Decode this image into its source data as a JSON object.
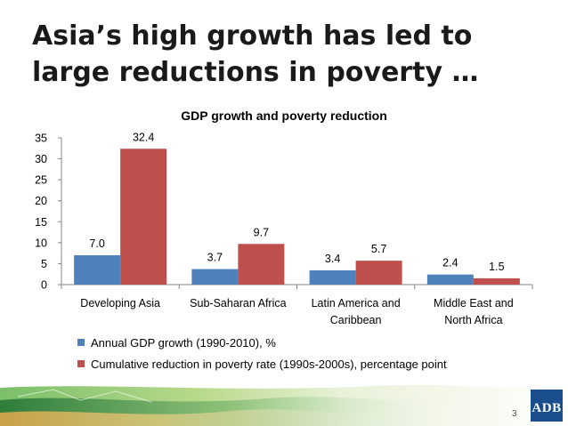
{
  "slide": {
    "title": "Asia’s high growth has led to large reductions in poverty …",
    "page_number": "3",
    "logo_text": "ADB"
  },
  "chart_data": {
    "type": "bar",
    "title": "GDP growth and poverty reduction",
    "categories": [
      "Developing Asia",
      "Sub-Saharan Africa",
      "Latin America and Caribbean",
      "Middle East and North Africa"
    ],
    "category_lines": [
      [
        "Developing Asia"
      ],
      [
        "Sub-Saharan Africa"
      ],
      [
        "Latin America and",
        "Caribbean"
      ],
      [
        "Middle East and",
        "North Africa"
      ]
    ],
    "series": [
      {
        "name": "Annual GDP growth (1990-2010), %",
        "values": [
          7.0,
          3.7,
          3.4,
          2.4
        ],
        "color": "#4f81bd"
      },
      {
        "name": "Cumulative reduction in poverty rate (1990s-2000s), percentage point",
        "values": [
          32.4,
          9.7,
          5.7,
          1.5
        ],
        "color": "#c0504d"
      }
    ],
    "value_labels": [
      [
        "7.0",
        "3.7",
        "3.4",
        "2.4"
      ],
      [
        "32.4",
        "9.7",
        "5.7",
        "1.5"
      ]
    ],
    "yticks": [
      "0",
      "5",
      "10",
      "15",
      "20",
      "25",
      "30",
      "35"
    ],
    "ylim": [
      0,
      35
    ],
    "xlabel": "",
    "ylabel": "",
    "grid": false,
    "legend_position": "bottom"
  }
}
